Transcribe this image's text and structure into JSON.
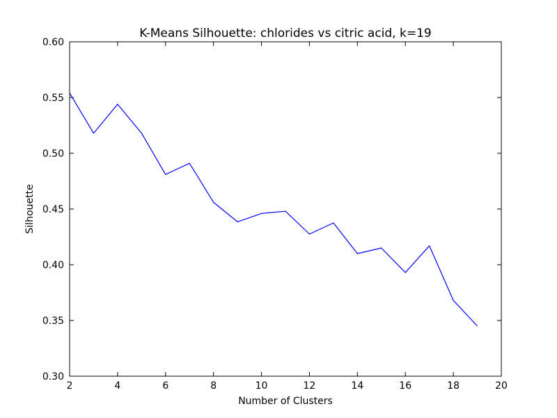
{
  "chart_data": {
    "type": "line",
    "title": "K-Means Silhouette: chlorides vs citric acid, k=19",
    "xlabel": "Number of Clusters",
    "ylabel": "Silhouette",
    "xlim": [
      2,
      20
    ],
    "ylim": [
      0.3,
      0.6
    ],
    "xticks": [
      "2",
      "4",
      "6",
      "8",
      "10",
      "12",
      "14",
      "16",
      "18",
      "20"
    ],
    "yticks": [
      "0.30",
      "0.35",
      "0.40",
      "0.45",
      "0.50",
      "0.55",
      "0.60"
    ],
    "grid": false,
    "series": [
      {
        "color": "#0000ff",
        "x": [
          2,
          3,
          4,
          5,
          6,
          7,
          8,
          9,
          10,
          11,
          12,
          13,
          14,
          15,
          16,
          17,
          18,
          19
        ],
        "y": [
          0.554,
          0.518,
          0.544,
          0.518,
          0.481,
          0.491,
          0.456,
          0.4385,
          0.446,
          0.448,
          0.4275,
          0.4375,
          0.41,
          0.415,
          0.393,
          0.417,
          0.368,
          0.345
        ]
      }
    ]
  }
}
